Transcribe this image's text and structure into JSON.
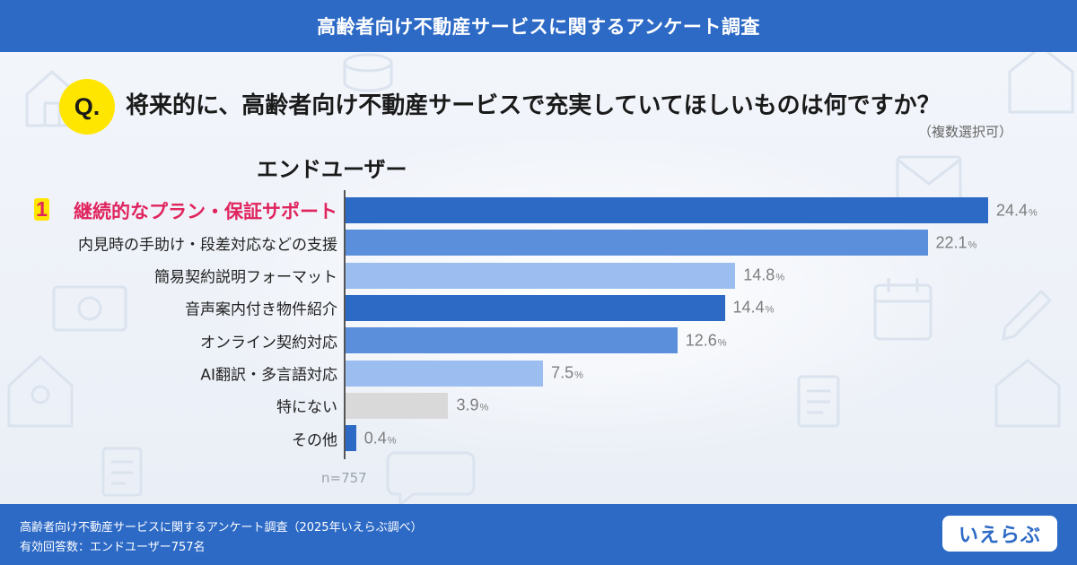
{
  "header": {
    "title": "高齢者向け不動産サービスに関するアンケート調査"
  },
  "question": {
    "badge": "Q.",
    "text": "将来的に、高齢者向け不動産サービスで充実していてほしいものは何ですか？",
    "note": "（複数選択可）"
  },
  "segment": "エンドユーザー",
  "rank_badge": "1",
  "chart_data": {
    "type": "bar",
    "orientation": "horizontal",
    "title": "",
    "categories": [
      "継続的なプラン・保証サポート",
      "内見時の手助け・段差対応などの支援",
      "簡易契約説明フォーマット",
      "音声案内付き物件紹介",
      "オンライン契約対応",
      "AI翻訳・多言語対応",
      "特にない",
      "その他"
    ],
    "values": [
      24.4,
      22.1,
      14.8,
      14.4,
      12.6,
      7.5,
      3.9,
      0.4
    ],
    "value_labels": [
      "24.4",
      "22.1",
      "14.8",
      "14.4",
      "12.6",
      "7.5",
      "3.9",
      "0.4"
    ],
    "unit": "%",
    "bar_colors": [
      "#2d6ac6",
      "#5b8fdc",
      "#9cbdf0",
      "#2d6ac6",
      "#5b8fdc",
      "#9cbdf0",
      "#d9d9d9",
      "#2d6ac6"
    ],
    "xlim": [
      0,
      25
    ],
    "grid": false,
    "n_label": "n=757"
  },
  "footer": {
    "source": "高齢者向け不動産サービスに関するアンケート調査（2025年いえらぶ調べ）",
    "respondents": "有効回答数：エンドユーザー757名",
    "logo": "いえらぶ"
  }
}
